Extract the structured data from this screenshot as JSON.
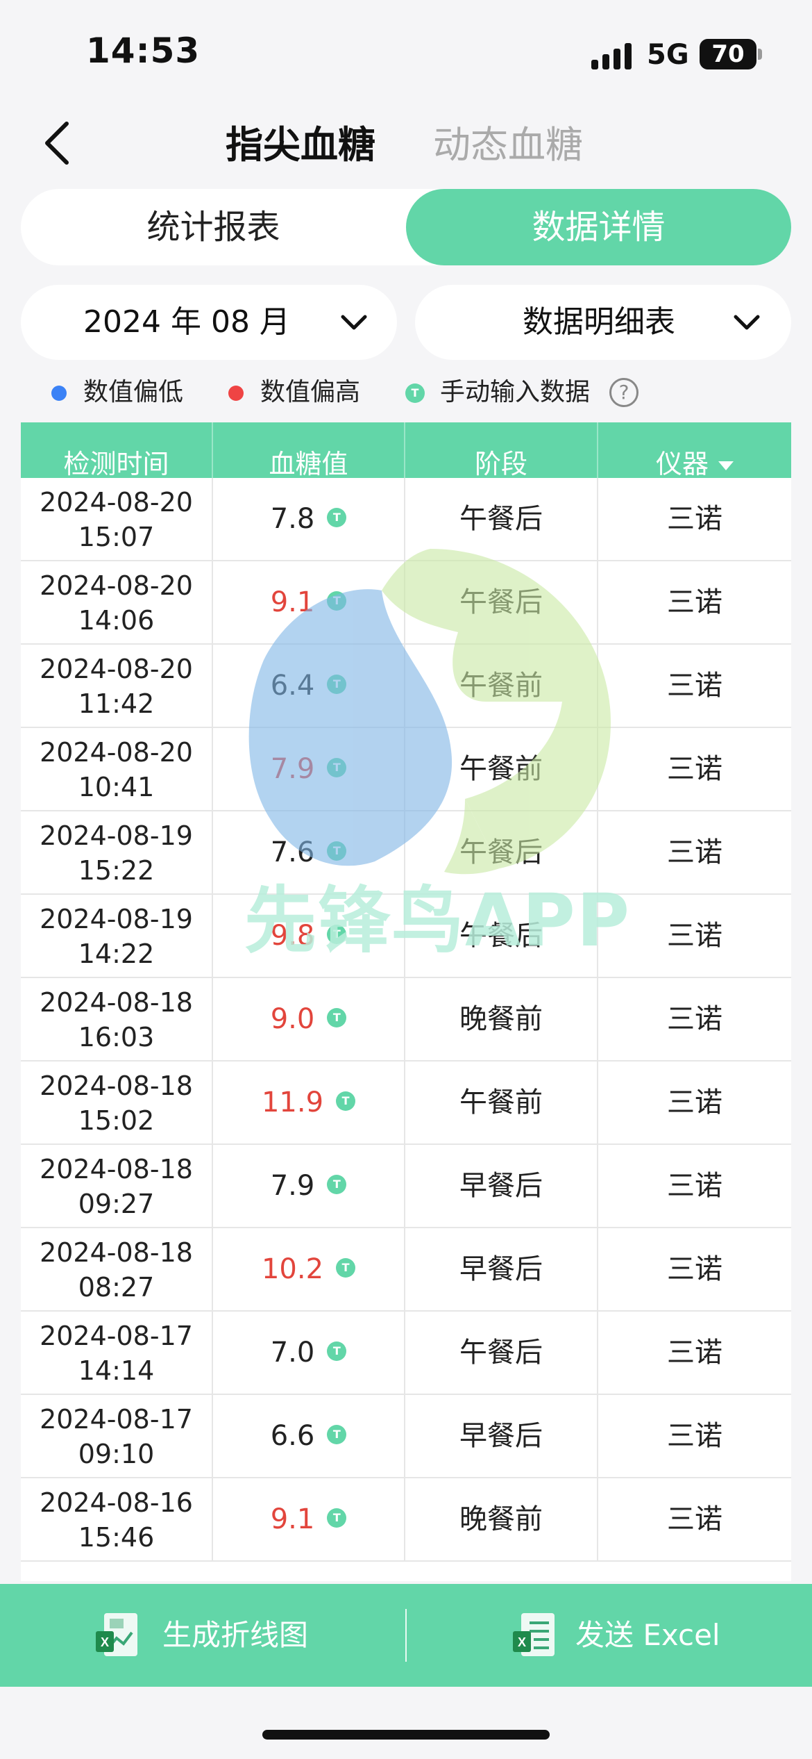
{
  "status": {
    "time": "14:53",
    "network": "5G",
    "battery": "70"
  },
  "header": {
    "tab_active": "指尖血糖",
    "tab_inactive": "动态血糖"
  },
  "segment": {
    "left": "统计报表",
    "right": "数据详情"
  },
  "selectors": {
    "month": "2024 年 08 月",
    "type": "数据明细表"
  },
  "legend": {
    "low": "数值偏低",
    "high": "数值偏高",
    "manual": "手动输入数据",
    "manual_badge": "T",
    "help": "?"
  },
  "table": {
    "headers": [
      "检测时间",
      "血糖值",
      "阶段",
      "仪器"
    ],
    "rows": [
      {
        "date": "2024-08-20",
        "time": "15:07",
        "value": "7.8",
        "level": "normal",
        "stage": "午餐后",
        "device": "三诺"
      },
      {
        "date": "2024-08-20",
        "time": "14:06",
        "value": "9.1",
        "level": "high",
        "stage": "午餐后",
        "device": "三诺"
      },
      {
        "date": "2024-08-20",
        "time": "11:42",
        "value": "6.4",
        "level": "normal",
        "stage": "午餐前",
        "device": "三诺"
      },
      {
        "date": "2024-08-20",
        "time": "10:41",
        "value": "7.9",
        "level": "high",
        "stage": "午餐前",
        "device": "三诺"
      },
      {
        "date": "2024-08-19",
        "time": "15:22",
        "value": "7.6",
        "level": "normal",
        "stage": "午餐后",
        "device": "三诺"
      },
      {
        "date": "2024-08-19",
        "time": "14:22",
        "value": "9.8",
        "level": "high",
        "stage": "午餐后",
        "device": "三诺"
      },
      {
        "date": "2024-08-18",
        "time": "16:03",
        "value": "9.0",
        "level": "high",
        "stage": "晚餐前",
        "device": "三诺"
      },
      {
        "date": "2024-08-18",
        "time": "15:02",
        "value": "11.9",
        "level": "high",
        "stage": "午餐前",
        "device": "三诺"
      },
      {
        "date": "2024-08-18",
        "time": "09:27",
        "value": "7.9",
        "level": "normal",
        "stage": "早餐后",
        "device": "三诺"
      },
      {
        "date": "2024-08-18",
        "time": "08:27",
        "value": "10.2",
        "level": "high",
        "stage": "早餐后",
        "device": "三诺"
      },
      {
        "date": "2024-08-17",
        "time": "14:14",
        "value": "7.0",
        "level": "normal",
        "stage": "午餐后",
        "device": "三诺"
      },
      {
        "date": "2024-08-17",
        "time": "09:10",
        "value": "6.6",
        "level": "normal",
        "stage": "早餐后",
        "device": "三诺"
      },
      {
        "date": "2024-08-16",
        "time": "15:46",
        "value": "9.1",
        "level": "high",
        "stage": "晚餐前",
        "device": "三诺"
      }
    ]
  },
  "watermark": {
    "text": "先锋鸟APP"
  },
  "bottom": {
    "left_label": "生成折线图",
    "right_label": "发送 Excel"
  },
  "colors": {
    "accent": "#62d6a8",
    "high": "#e2453c",
    "low": "#3b82f6"
  }
}
